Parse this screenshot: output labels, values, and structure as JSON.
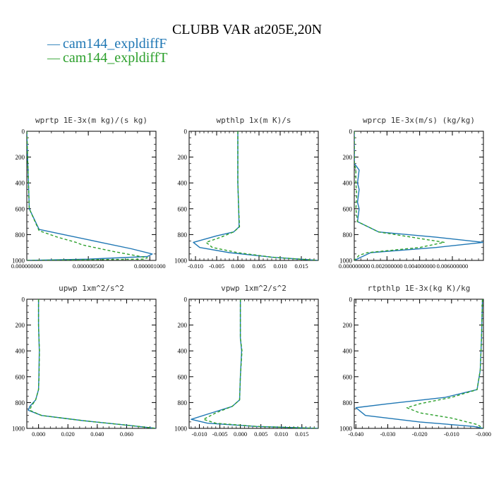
{
  "title": "CLUBB VAR at205E,20N",
  "legend": [
    {
      "label": "cam144_expldiffF",
      "color": "#1f77b4",
      "dash": "solid"
    },
    {
      "label": "cam144_expldiffT",
      "color": "#2ca02c",
      "dash": "dashed"
    }
  ],
  "chart_data": [
    {
      "type": "line",
      "title": "wprtp  1E-3x(m kg)/(s kg)",
      "ylim": [
        1000,
        0
      ],
      "xlim": [
        0.0,
        1.05e-06
      ],
      "yticks": [
        0,
        200,
        400,
        600,
        800,
        1000
      ],
      "xticks": [
        0.0,
        5e-07,
        1e-06
      ],
      "xticklabels": [
        "0.000000000",
        "0.000000500",
        "0.000001000"
      ],
      "series": [
        {
          "name": "cam144_expldiffF",
          "x": [
            0,
            1e-08,
            2e-08,
            1e-07,
            3e-07,
            6e-07,
            8.5e-07,
            1.02e-06,
            9.8e-07,
            5e-07,
            0.0
          ],
          "y": [
            0,
            300,
            600,
            760,
            800,
            860,
            910,
            950,
            970,
            990,
            1000
          ]
        },
        {
          "name": "cam144_expldiffT",
          "x": [
            0,
            1e-08,
            2e-08,
            1e-07,
            2.5e-07,
            4e-07,
            4.5e-07,
            7e-07,
            9.8e-07,
            9.5e-07,
            0.0
          ],
          "y": [
            0,
            300,
            600,
            770,
            820,
            860,
            880,
            930,
            980,
            990,
            1000
          ]
        }
      ]
    },
    {
      "type": "line",
      "title": "wpthlp  1x(m K)/s",
      "ylim": [
        1000,
        0
      ],
      "xlim": [
        -0.0115,
        0.019
      ],
      "yticks": [
        0,
        200,
        400,
        600,
        800,
        1000
      ],
      "xticks": [
        -0.01,
        -0.005,
        0.0,
        0.005,
        0.01,
        0.015
      ],
      "xticklabels": [
        "-0.010",
        "-0.005",
        "0.000",
        "0.005",
        "0.010",
        "0.015"
      ],
      "series": [
        {
          "name": "cam144_expldiffF",
          "x": [
            0,
            0,
            0.0002,
            0.0003,
            -0.001,
            -0.005,
            -0.0105,
            -0.009,
            -0.002,
            0.008,
            0.019
          ],
          "y": [
            0,
            400,
            600,
            740,
            780,
            810,
            860,
            900,
            940,
            975,
            1000
          ]
        },
        {
          "name": "cam144_expldiffT",
          "x": [
            0,
            0,
            0.0002,
            0.0004,
            -0.001,
            -0.004,
            -0.0075,
            -0.006,
            0.0,
            0.008,
            0.019
          ],
          "y": [
            0,
            400,
            600,
            740,
            780,
            820,
            860,
            900,
            940,
            975,
            1000
          ]
        }
      ]
    },
    {
      "type": "line",
      "title": "wprcp  1E-3x(m/s) (kg/kg)",
      "ylim": [
        1000,
        0
      ],
      "xlim": [
        0.0,
        0.0079
      ],
      "yticks": [
        0,
        200,
        400,
        600,
        800,
        1000
      ],
      "xticks": [
        0.0,
        0.002,
        0.004,
        0.006
      ],
      "xticklabels": [
        "0.000000000",
        "0.002000000",
        "0.004000000",
        "0.006000000"
      ],
      "series": [
        {
          "name": "cam144_expldiffF",
          "x": [
            0,
            1e-05,
            0.0003,
            0.0002,
            0.0003,
            0.0002,
            0.0003,
            0.0002,
            0.0015,
            0.005,
            0.0079,
            0.005,
            0.001,
            0.0
          ],
          "y": [
            0,
            250,
            300,
            400,
            450,
            550,
            600,
            700,
            780,
            820,
            860,
            900,
            940,
            1000
          ]
        },
        {
          "name": "cam144_expldiffT",
          "x": [
            0,
            1e-05,
            0.0001,
            0.0001,
            0.00015,
            0.0001,
            0.0002,
            0.0015,
            0.004,
            0.0055,
            0.004,
            0.0008,
            0.0003,
            0.0
          ],
          "y": [
            0,
            250,
            300,
            400,
            500,
            600,
            700,
            780,
            830,
            860,
            900,
            940,
            960,
            1000
          ]
        }
      ]
    },
    {
      "type": "line",
      "title": "upwp  1xm^2/s^2",
      "ylim": [
        1000,
        0
      ],
      "xlim": [
        -0.008,
        0.08
      ],
      "yticks": [
        0,
        200,
        400,
        600,
        800,
        1000
      ],
      "xticks": [
        0.0,
        0.02,
        0.04,
        0.06
      ],
      "xticklabels": [
        "0.000",
        "0.020",
        "0.040",
        "0.060"
      ],
      "series": [
        {
          "name": "cam144_expldiffF",
          "x": [
            0,
            0,
            0.0005,
            0.0002,
            0.0,
            -0.002,
            -0.006,
            -0.007,
            0.002,
            0.03,
            0.06,
            0.08
          ],
          "y": [
            0,
            200,
            400,
            600,
            700,
            780,
            830,
            860,
            900,
            940,
            975,
            1000
          ]
        },
        {
          "name": "cam144_expldiffT",
          "x": [
            0,
            0,
            0.0006,
            0.0003,
            0.0,
            -0.002,
            -0.005,
            -0.006,
            0.002,
            0.03,
            0.06,
            0.08
          ],
          "y": [
            0,
            200,
            400,
            600,
            700,
            780,
            830,
            860,
            900,
            940,
            975,
            1000
          ]
        }
      ]
    },
    {
      "type": "line",
      "title": "vpwp  1xm^2/s^2",
      "ylim": [
        1000,
        0
      ],
      "xlim": [
        -0.0125,
        0.019
      ],
      "yticks": [
        0,
        200,
        400,
        600,
        800,
        1000
      ],
      "xticks": [
        -0.01,
        -0.005,
        0.0,
        0.005,
        0.01,
        0.015
      ],
      "xticklabels": [
        "-0.010",
        "-0.005",
        "0.000",
        "0.005",
        "0.010",
        "0.015"
      ],
      "series": [
        {
          "name": "cam144_expldiffF",
          "x": [
            0,
            0,
            0.0003,
            0.0,
            -0.0002,
            -0.002,
            -0.007,
            -0.012,
            -0.008,
            0.004,
            0.019
          ],
          "y": [
            0,
            300,
            400,
            600,
            780,
            830,
            880,
            930,
            960,
            985,
            1000
          ]
        },
        {
          "name": "cam144_expldiffT",
          "x": [
            0,
            0,
            0.0004,
            0.0,
            -0.0002,
            -0.002,
            -0.006,
            -0.009,
            -0.006,
            0.004,
            0.019
          ],
          "y": [
            0,
            300,
            400,
            600,
            780,
            830,
            880,
            930,
            960,
            985,
            1000
          ]
        }
      ]
    },
    {
      "type": "line",
      "title": "rtpthlp  1E-3x(kg K)/kg",
      "ylim": [
        1000,
        0
      ],
      "xlim": [
        -0.0405,
        0.0
      ],
      "yticks": [
        0,
        200,
        400,
        600,
        800,
        1000
      ],
      "xticks": [
        -0.04,
        -0.03,
        -0.02,
        -0.01,
        0.0
      ],
      "xticklabels": [
        "-0.040",
        "-0.030",
        "-0.020",
        "-0.010",
        "-0.000"
      ],
      "series": [
        {
          "name": "cam144_expldiffF",
          "x": [
            -0.0003,
            -0.0006,
            -0.001,
            -0.002,
            -0.012,
            -0.03,
            -0.04,
            -0.037,
            -0.02,
            -0.003,
            0.0
          ],
          "y": [
            0,
            300,
            550,
            700,
            760,
            810,
            840,
            900,
            950,
            985,
            1000
          ]
        },
        {
          "name": "cam144_expldiffT",
          "x": [
            -0.0003,
            -0.0006,
            -0.001,
            -0.002,
            -0.01,
            -0.02,
            -0.024,
            -0.02,
            -0.01,
            -0.002,
            0.0
          ],
          "y": [
            0,
            300,
            550,
            700,
            760,
            810,
            840,
            880,
            920,
            970,
            1000
          ]
        }
      ]
    }
  ]
}
